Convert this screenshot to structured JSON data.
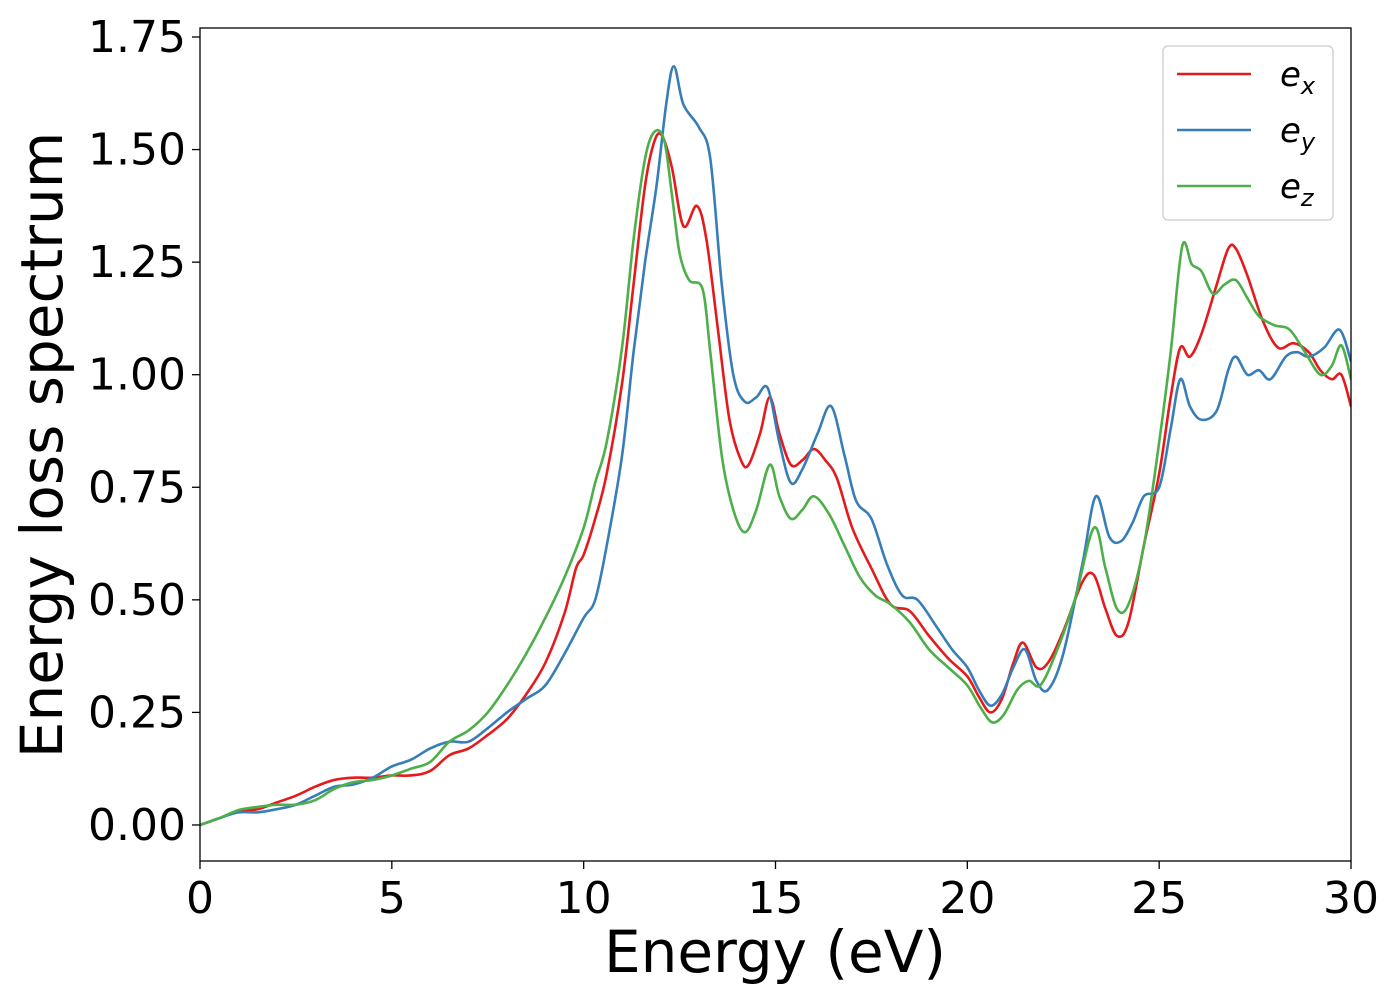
{
  "chart_data": {
    "type": "line",
    "xlabel": "Energy (eV)",
    "ylabel": "Energy loss spectrum",
    "xlim": [
      0,
      30
    ],
    "ylim": [
      -0.08,
      1.77
    ],
    "xticks": [
      0,
      5,
      10,
      15,
      20,
      25,
      30
    ],
    "yticks": [
      0.0,
      0.25,
      0.5,
      0.75,
      1.0,
      1.25,
      1.5,
      1.75
    ],
    "xtick_labels": [
      "0",
      "5",
      "10",
      "15",
      "20",
      "25",
      "30"
    ],
    "ytick_labels": [
      "0.00",
      "0.25",
      "0.50",
      "0.75",
      "1.00",
      "1.25",
      "1.50",
      "1.75"
    ],
    "grid": false,
    "legend_position": "top-right",
    "series": [
      {
        "name": "e_x",
        "legend_base": "e",
        "legend_sub": "x",
        "color": "#e41a1c",
        "points": [
          [
            0,
            0
          ],
          [
            0.5,
            0.015
          ],
          [
            1,
            0.03
          ],
          [
            1.5,
            0.035
          ],
          [
            2,
            0.05
          ],
          [
            2.5,
            0.065
          ],
          [
            3,
            0.085
          ],
          [
            3.5,
            0.1
          ],
          [
            4,
            0.105
          ],
          [
            4.5,
            0.105
          ],
          [
            5,
            0.11
          ],
          [
            5.5,
            0.11
          ],
          [
            6,
            0.12
          ],
          [
            6.5,
            0.155
          ],
          [
            7,
            0.17
          ],
          [
            7.5,
            0.2
          ],
          [
            8,
            0.235
          ],
          [
            8.5,
            0.29
          ],
          [
            9,
            0.36
          ],
          [
            9.5,
            0.47
          ],
          [
            9.8,
            0.57
          ],
          [
            10,
            0.6
          ],
          [
            10.3,
            0.68
          ],
          [
            10.6,
            0.78
          ],
          [
            11,
            0.98
          ],
          [
            11.3,
            1.2
          ],
          [
            11.6,
            1.42
          ],
          [
            11.85,
            1.52
          ],
          [
            12.05,
            1.53
          ],
          [
            12.3,
            1.46
          ],
          [
            12.6,
            1.33
          ],
          [
            12.95,
            1.375
          ],
          [
            13.2,
            1.3
          ],
          [
            13.5,
            1.1
          ],
          [
            13.8,
            0.9
          ],
          [
            14.1,
            0.81
          ],
          [
            14.3,
            0.8
          ],
          [
            14.6,
            0.87
          ],
          [
            14.85,
            0.95
          ],
          [
            15.1,
            0.87
          ],
          [
            15.4,
            0.8
          ],
          [
            15.7,
            0.81
          ],
          [
            16,
            0.835
          ],
          [
            16.3,
            0.81
          ],
          [
            16.6,
            0.77
          ],
          [
            17,
            0.66
          ],
          [
            17.5,
            0.57
          ],
          [
            18,
            0.49
          ],
          [
            18.5,
            0.475
          ],
          [
            19,
            0.42
          ],
          [
            19.5,
            0.37
          ],
          [
            20,
            0.33
          ],
          [
            20.3,
            0.285
          ],
          [
            20.6,
            0.25
          ],
          [
            20.9,
            0.28
          ],
          [
            21.2,
            0.36
          ],
          [
            21.45,
            0.405
          ],
          [
            21.8,
            0.35
          ],
          [
            22.1,
            0.36
          ],
          [
            22.5,
            0.43
          ],
          [
            23,
            0.54
          ],
          [
            23.3,
            0.555
          ],
          [
            23.6,
            0.48
          ],
          [
            23.9,
            0.42
          ],
          [
            24.2,
            0.45
          ],
          [
            24.6,
            0.62
          ],
          [
            25,
            0.78
          ],
          [
            25.3,
            0.95
          ],
          [
            25.55,
            1.06
          ],
          [
            25.8,
            1.04
          ],
          [
            26.1,
            1.09
          ],
          [
            26.5,
            1.2
          ],
          [
            26.8,
            1.28
          ],
          [
            27,
            1.28
          ],
          [
            27.3,
            1.22
          ],
          [
            27.7,
            1.12
          ],
          [
            28.1,
            1.06
          ],
          [
            28.5,
            1.07
          ],
          [
            28.9,
            1.05
          ],
          [
            29.2,
            1.01
          ],
          [
            29.5,
            0.99
          ],
          [
            29.75,
            1.0
          ],
          [
            30,
            0.93
          ]
        ]
      },
      {
        "name": "e_y",
        "legend_base": "e",
        "legend_sub": "y",
        "color": "#377eb8",
        "points": [
          [
            0,
            0
          ],
          [
            0.5,
            0.015
          ],
          [
            1,
            0.028
          ],
          [
            1.5,
            0.028
          ],
          [
            2,
            0.035
          ],
          [
            2.5,
            0.045
          ],
          [
            3,
            0.065
          ],
          [
            3.5,
            0.085
          ],
          [
            4,
            0.09
          ],
          [
            4.5,
            0.105
          ],
          [
            5,
            0.13
          ],
          [
            5.5,
            0.145
          ],
          [
            6,
            0.17
          ],
          [
            6.5,
            0.185
          ],
          [
            7,
            0.185
          ],
          [
            7.5,
            0.215
          ],
          [
            8,
            0.25
          ],
          [
            8.5,
            0.28
          ],
          [
            9,
            0.31
          ],
          [
            9.5,
            0.38
          ],
          [
            10,
            0.46
          ],
          [
            10.3,
            0.5
          ],
          [
            10.6,
            0.62
          ],
          [
            11,
            0.82
          ],
          [
            11.3,
            1.05
          ],
          [
            11.6,
            1.25
          ],
          [
            11.9,
            1.42
          ],
          [
            12.15,
            1.6
          ],
          [
            12.35,
            1.685
          ],
          [
            12.6,
            1.6
          ],
          [
            13,
            1.55
          ],
          [
            13.3,
            1.48
          ],
          [
            13.6,
            1.2
          ],
          [
            13.9,
            1.0
          ],
          [
            14.2,
            0.94
          ],
          [
            14.5,
            0.95
          ],
          [
            14.8,
            0.97
          ],
          [
            15.1,
            0.85
          ],
          [
            15.4,
            0.76
          ],
          [
            15.7,
            0.79
          ],
          [
            16.1,
            0.87
          ],
          [
            16.45,
            0.93
          ],
          [
            16.8,
            0.82
          ],
          [
            17.1,
            0.72
          ],
          [
            17.5,
            0.68
          ],
          [
            17.9,
            0.58
          ],
          [
            18.3,
            0.51
          ],
          [
            18.7,
            0.5
          ],
          [
            19.2,
            0.44
          ],
          [
            19.6,
            0.39
          ],
          [
            20,
            0.35
          ],
          [
            20.3,
            0.3
          ],
          [
            20.6,
            0.265
          ],
          [
            20.9,
            0.29
          ],
          [
            21.2,
            0.35
          ],
          [
            21.5,
            0.39
          ],
          [
            21.8,
            0.32
          ],
          [
            22.1,
            0.3
          ],
          [
            22.5,
            0.38
          ],
          [
            23,
            0.58
          ],
          [
            23.35,
            0.73
          ],
          [
            23.7,
            0.64
          ],
          [
            24,
            0.63
          ],
          [
            24.3,
            0.67
          ],
          [
            24.6,
            0.73
          ],
          [
            25,
            0.75
          ],
          [
            25.3,
            0.88
          ],
          [
            25.55,
            0.99
          ],
          [
            25.8,
            0.93
          ],
          [
            26.1,
            0.9
          ],
          [
            26.5,
            0.92
          ],
          [
            26.8,
            1.01
          ],
          [
            27,
            1.04
          ],
          [
            27.3,
            1.0
          ],
          [
            27.6,
            1.01
          ],
          [
            27.9,
            0.99
          ],
          [
            28.3,
            1.04
          ],
          [
            28.6,
            1.05
          ],
          [
            28.9,
            1.04
          ],
          [
            29.3,
            1.06
          ],
          [
            29.7,
            1.1
          ],
          [
            30,
            1.03
          ]
        ]
      },
      {
        "name": "e_z",
        "legend_base": "e",
        "legend_sub": "z",
        "color": "#4daf4a",
        "points": [
          [
            0,
            0
          ],
          [
            0.5,
            0.015
          ],
          [
            1,
            0.033
          ],
          [
            1.5,
            0.04
          ],
          [
            2,
            0.045
          ],
          [
            2.5,
            0.045
          ],
          [
            3,
            0.055
          ],
          [
            3.5,
            0.08
          ],
          [
            4,
            0.095
          ],
          [
            4.5,
            0.1
          ],
          [
            5,
            0.11
          ],
          [
            5.5,
            0.125
          ],
          [
            6,
            0.14
          ],
          [
            6.5,
            0.185
          ],
          [
            7,
            0.21
          ],
          [
            7.5,
            0.25
          ],
          [
            8,
            0.31
          ],
          [
            8.5,
            0.38
          ],
          [
            9,
            0.46
          ],
          [
            9.5,
            0.55
          ],
          [
            10,
            0.66
          ],
          [
            10.3,
            0.76
          ],
          [
            10.6,
            0.85
          ],
          [
            11,
            1.06
          ],
          [
            11.3,
            1.3
          ],
          [
            11.6,
            1.48
          ],
          [
            11.85,
            1.54
          ],
          [
            12.1,
            1.52
          ],
          [
            12.3,
            1.4
          ],
          [
            12.5,
            1.27
          ],
          [
            12.75,
            1.21
          ],
          [
            13.1,
            1.19
          ],
          [
            13.3,
            1.05
          ],
          [
            13.6,
            0.82
          ],
          [
            13.9,
            0.7
          ],
          [
            14.2,
            0.65
          ],
          [
            14.5,
            0.7
          ],
          [
            14.85,
            0.8
          ],
          [
            15.1,
            0.73
          ],
          [
            15.4,
            0.68
          ],
          [
            15.7,
            0.7
          ],
          [
            16,
            0.73
          ],
          [
            16.4,
            0.69
          ],
          [
            16.8,
            0.62
          ],
          [
            17.2,
            0.55
          ],
          [
            17.6,
            0.51
          ],
          [
            18,
            0.49
          ],
          [
            18.5,
            0.45
          ],
          [
            19,
            0.39
          ],
          [
            19.5,
            0.35
          ],
          [
            20,
            0.31
          ],
          [
            20.35,
            0.26
          ],
          [
            20.65,
            0.228
          ],
          [
            20.95,
            0.245
          ],
          [
            21.3,
            0.3
          ],
          [
            21.6,
            0.32
          ],
          [
            21.9,
            0.31
          ],
          [
            22.3,
            0.38
          ],
          [
            22.8,
            0.5
          ],
          [
            23.3,
            0.66
          ],
          [
            23.6,
            0.57
          ],
          [
            23.9,
            0.48
          ],
          [
            24.2,
            0.49
          ],
          [
            24.6,
            0.62
          ],
          [
            25,
            0.85
          ],
          [
            25.3,
            1.05
          ],
          [
            25.6,
            1.285
          ],
          [
            25.85,
            1.245
          ],
          [
            26.1,
            1.23
          ],
          [
            26.4,
            1.18
          ],
          [
            26.7,
            1.2
          ],
          [
            27,
            1.21
          ],
          [
            27.3,
            1.17
          ],
          [
            27.6,
            1.13
          ],
          [
            28,
            1.11
          ],
          [
            28.4,
            1.1
          ],
          [
            28.8,
            1.05
          ],
          [
            29.2,
            1.0
          ],
          [
            29.5,
            1.02
          ],
          [
            29.75,
            1.065
          ],
          [
            30,
            0.99
          ]
        ]
      }
    ]
  }
}
